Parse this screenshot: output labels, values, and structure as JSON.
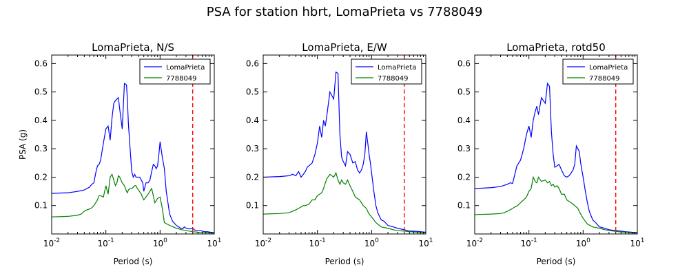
{
  "figure_title": "PSA for station hbrt, LomaPrieta vs 7788049",
  "colors": {
    "series1": "#0000ff",
    "series2": "#008000",
    "vline": "#ff0000"
  },
  "chart_data": [
    {
      "type": "line",
      "title": "LomaPrieta, N/S",
      "xlabel": "Period (s)",
      "ylabel": "PSA (g)",
      "xscale": "log",
      "xlim": [
        0.01,
        10
      ],
      "ylim": [
        0,
        0.63
      ],
      "xticks": [
        0.01,
        0.1,
        1,
        10
      ],
      "xtick_labels": [
        {
          "base": "10",
          "exp": "-2"
        },
        {
          "base": "10",
          "exp": "-1"
        },
        {
          "base": "10",
          "exp": "0"
        },
        {
          "base": "10",
          "exp": "1"
        }
      ],
      "yticks": [
        0.1,
        0.2,
        0.3,
        0.4,
        0.5,
        0.6
      ],
      "ytick_labels": [
        "0.1",
        "0.2",
        "0.3",
        "0.4",
        "0.5",
        "0.6"
      ],
      "legend": {
        "position": "top-right",
        "entries": [
          "LomaPrieta",
          "7788049"
        ]
      },
      "vline": {
        "x": 4.0,
        "style": "dashed"
      },
      "series": [
        {
          "name": "LomaPrieta",
          "color": "#0000ff",
          "x": [
            0.01,
            0.02,
            0.03,
            0.04,
            0.05,
            0.055,
            0.06,
            0.065,
            0.07,
            0.075,
            0.08,
            0.09,
            0.1,
            0.11,
            0.12,
            0.13,
            0.14,
            0.15,
            0.17,
            0.18,
            0.2,
            0.22,
            0.24,
            0.25,
            0.26,
            0.28,
            0.3,
            0.32,
            0.34,
            0.36,
            0.38,
            0.4,
            0.42,
            0.45,
            0.48,
            0.5,
            0.55,
            0.6,
            0.65,
            0.7,
            0.75,
            0.8,
            0.85,
            0.9,
            0.95,
            1.0,
            1.1,
            1.2,
            1.3,
            1.5,
            1.7,
            2.0,
            2.2,
            2.4,
            2.6,
            2.8,
            3.0,
            3.3,
            3.6,
            4.0,
            4.5,
            5.0,
            5.5,
            6.0,
            6.5,
            7.5,
            8.5,
            10.0
          ],
          "y": [
            0.143,
            0.145,
            0.15,
            0.155,
            0.165,
            0.175,
            0.18,
            0.215,
            0.24,
            0.245,
            0.26,
            0.32,
            0.37,
            0.38,
            0.33,
            0.41,
            0.46,
            0.47,
            0.48,
            0.44,
            0.37,
            0.53,
            0.525,
            0.47,
            0.39,
            0.3,
            0.22,
            0.2,
            0.21,
            0.2,
            0.2,
            0.2,
            0.2,
            0.19,
            0.18,
            0.15,
            0.18,
            0.18,
            0.19,
            0.22,
            0.245,
            0.24,
            0.23,
            0.24,
            0.28,
            0.325,
            0.27,
            0.23,
            0.15,
            0.07,
            0.045,
            0.03,
            0.025,
            0.02,
            0.018,
            0.025,
            0.02,
            0.018,
            0.018,
            0.02,
            0.012,
            0.012,
            0.012,
            0.01,
            0.008,
            0.008,
            0.006,
            0.005
          ]
        },
        {
          "name": "7788049",
          "color": "#008000",
          "x": [
            0.01,
            0.02,
            0.025,
            0.03,
            0.035,
            0.04,
            0.045,
            0.05,
            0.055,
            0.06,
            0.065,
            0.07,
            0.075,
            0.08,
            0.09,
            0.1,
            0.11,
            0.12,
            0.13,
            0.14,
            0.15,
            0.16,
            0.17,
            0.18,
            0.2,
            0.22,
            0.24,
            0.25,
            0.26,
            0.28,
            0.3,
            0.32,
            0.34,
            0.36,
            0.38,
            0.4,
            0.45,
            0.5,
            0.55,
            0.6,
            0.7,
            0.8,
            0.9,
            1.0,
            1.1,
            1.2,
            1.5,
            2.0,
            2.5,
            3.0,
            4.0,
            5.0,
            6.0,
            7.0,
            8.0,
            10.0
          ],
          "y": [
            0.06,
            0.062,
            0.064,
            0.066,
            0.07,
            0.08,
            0.085,
            0.088,
            0.092,
            0.1,
            0.11,
            0.12,
            0.135,
            0.135,
            0.13,
            0.17,
            0.14,
            0.2,
            0.21,
            0.19,
            0.17,
            0.18,
            0.205,
            0.2,
            0.18,
            0.17,
            0.15,
            0.145,
            0.155,
            0.16,
            0.16,
            0.165,
            0.17,
            0.17,
            0.16,
            0.155,
            0.14,
            0.12,
            0.13,
            0.14,
            0.16,
            0.11,
            0.125,
            0.13,
            0.09,
            0.04,
            0.03,
            0.02,
            0.015,
            0.012,
            0.008,
            0.006,
            0.005,
            0.005,
            0.004,
            0.003
          ]
        }
      ]
    },
    {
      "type": "line",
      "title": "LomaPrieta, E/W",
      "xlabel": "Period (s)",
      "ylabel": "",
      "xscale": "log",
      "xlim": [
        0.01,
        10
      ],
      "ylim": [
        0,
        0.63
      ],
      "xticks": [
        0.01,
        0.1,
        1,
        10
      ],
      "xtick_labels": [
        {
          "base": "10",
          "exp": "-2"
        },
        {
          "base": "10",
          "exp": "-1"
        },
        {
          "base": "10",
          "exp": "0"
        },
        {
          "base": "10",
          "exp": "1"
        }
      ],
      "yticks": [
        0.1,
        0.2,
        0.3,
        0.4,
        0.5,
        0.6
      ],
      "ytick_labels": [
        "0.1",
        "0.2",
        "0.3",
        "0.4",
        "0.5",
        "0.6"
      ],
      "legend": {
        "position": "top-right",
        "entries": [
          "LomaPrieta",
          "7788049"
        ]
      },
      "vline": {
        "x": 4.0,
        "style": "dashed"
      },
      "series": [
        {
          "name": "LomaPrieta",
          "color": "#0000ff",
          "x": [
            0.01,
            0.02,
            0.03,
            0.035,
            0.04,
            0.045,
            0.05,
            0.055,
            0.06,
            0.065,
            0.07,
            0.08,
            0.09,
            0.1,
            0.11,
            0.12,
            0.13,
            0.14,
            0.15,
            0.17,
            0.2,
            0.22,
            0.24,
            0.26,
            0.28,
            0.3,
            0.33,
            0.36,
            0.4,
            0.45,
            0.5,
            0.55,
            0.6,
            0.65,
            0.7,
            0.75,
            0.8,
            0.85,
            0.9,
            0.95,
            1.0,
            1.1,
            1.2,
            1.3,
            1.5,
            1.7,
            2.0,
            2.5,
            3.0,
            4.0,
            5.0,
            6.0,
            8.0,
            10.0
          ],
          "y": [
            0.2,
            0.202,
            0.205,
            0.21,
            0.205,
            0.22,
            0.2,
            0.21,
            0.22,
            0.235,
            0.24,
            0.25,
            0.28,
            0.32,
            0.38,
            0.34,
            0.4,
            0.38,
            0.42,
            0.5,
            0.475,
            0.57,
            0.565,
            0.35,
            0.27,
            0.255,
            0.24,
            0.29,
            0.28,
            0.25,
            0.255,
            0.225,
            0.215,
            0.225,
            0.245,
            0.28,
            0.36,
            0.32,
            0.28,
            0.25,
            0.215,
            0.15,
            0.1,
            0.075,
            0.05,
            0.045,
            0.03,
            0.025,
            0.02,
            0.015,
            0.01,
            0.01,
            0.008,
            0.006
          ]
        },
        {
          "name": "7788049",
          "color": "#008000",
          "x": [
            0.01,
            0.02,
            0.03,
            0.035,
            0.04,
            0.045,
            0.05,
            0.055,
            0.06,
            0.07,
            0.08,
            0.09,
            0.1,
            0.11,
            0.12,
            0.13,
            0.14,
            0.15,
            0.17,
            0.2,
            0.22,
            0.24,
            0.26,
            0.28,
            0.3,
            0.33,
            0.36,
            0.4,
            0.45,
            0.5,
            0.6,
            0.7,
            0.8,
            0.9,
            1.0,
            1.2,
            1.5,
            2.0,
            2.5,
            3.0,
            4.0,
            5.0,
            6.0,
            7.0,
            8.0,
            10.0
          ],
          "y": [
            0.07,
            0.072,
            0.075,
            0.08,
            0.085,
            0.09,
            0.095,
            0.1,
            0.1,
            0.105,
            0.12,
            0.12,
            0.135,
            0.14,
            0.145,
            0.16,
            0.18,
            0.195,
            0.21,
            0.2,
            0.215,
            0.19,
            0.175,
            0.19,
            0.18,
            0.175,
            0.19,
            0.17,
            0.15,
            0.13,
            0.12,
            0.1,
            0.09,
            0.07,
            0.06,
            0.04,
            0.025,
            0.02,
            0.015,
            0.012,
            0.01,
            0.008,
            0.007,
            0.006,
            0.005,
            0.004
          ]
        }
      ]
    },
    {
      "type": "line",
      "title": "LomaPrieta, rotd50",
      "xlabel": "Period (s)",
      "ylabel": "",
      "xscale": "log",
      "xlim": [
        0.01,
        10
      ],
      "ylim": [
        0,
        0.63
      ],
      "xticks": [
        0.01,
        0.1,
        1,
        10
      ],
      "xtick_labels": [
        {
          "base": "10",
          "exp": "-2"
        },
        {
          "base": "10",
          "exp": "-1"
        },
        {
          "base": "10",
          "exp": "0"
        },
        {
          "base": "10",
          "exp": "1"
        }
      ],
      "yticks": [
        0.1,
        0.2,
        0.3,
        0.4,
        0.5,
        0.6
      ],
      "ytick_labels": [
        "0.1",
        "0.2",
        "0.3",
        "0.4",
        "0.5",
        "0.6"
      ],
      "legend": {
        "position": "top-right",
        "entries": [
          "LomaPrieta",
          "7788049"
        ]
      },
      "vline": {
        "x": 4.0,
        "style": "dashed"
      },
      "series": [
        {
          "name": "LomaPrieta",
          "color": "#0000ff",
          "x": [
            0.01,
            0.02,
            0.03,
            0.04,
            0.045,
            0.05,
            0.055,
            0.06,
            0.065,
            0.07,
            0.08,
            0.09,
            0.1,
            0.11,
            0.12,
            0.13,
            0.14,
            0.15,
            0.17,
            0.2,
            0.22,
            0.24,
            0.26,
            0.28,
            0.3,
            0.33,
            0.36,
            0.4,
            0.45,
            0.5,
            0.55,
            0.6,
            0.65,
            0.7,
            0.75,
            0.8,
            0.85,
            0.9,
            1.0,
            1.1,
            1.2,
            1.3,
            1.5,
            1.7,
            2.0,
            2.5,
            3.0,
            4.0,
            5.0,
            6.0,
            8.0,
            10.0
          ],
          "y": [
            0.16,
            0.163,
            0.167,
            0.175,
            0.18,
            0.178,
            0.21,
            0.24,
            0.25,
            0.26,
            0.3,
            0.35,
            0.38,
            0.34,
            0.4,
            0.43,
            0.45,
            0.42,
            0.48,
            0.46,
            0.53,
            0.52,
            0.36,
            0.28,
            0.235,
            0.24,
            0.245,
            0.225,
            0.205,
            0.2,
            0.205,
            0.215,
            0.225,
            0.245,
            0.31,
            0.3,
            0.29,
            0.25,
            0.2,
            0.15,
            0.11,
            0.08,
            0.05,
            0.04,
            0.025,
            0.02,
            0.015,
            0.012,
            0.01,
            0.008,
            0.006,
            0.005
          ]
        },
        {
          "name": "7788049",
          "color": "#008000",
          "x": [
            0.01,
            0.02,
            0.03,
            0.035,
            0.04,
            0.045,
            0.05,
            0.055,
            0.06,
            0.07,
            0.08,
            0.09,
            0.1,
            0.11,
            0.12,
            0.13,
            0.14,
            0.15,
            0.17,
            0.2,
            0.22,
            0.24,
            0.26,
            0.28,
            0.3,
            0.33,
            0.36,
            0.4,
            0.45,
            0.5,
            0.6,
            0.7,
            0.8,
            0.9,
            1.0,
            1.2,
            1.5,
            2.0,
            2.5,
            3.0,
            4.0,
            5.0,
            6.0,
            7.0,
            8.0,
            10.0
          ],
          "y": [
            0.068,
            0.07,
            0.072,
            0.075,
            0.08,
            0.085,
            0.09,
            0.095,
            0.098,
            0.11,
            0.12,
            0.13,
            0.15,
            0.16,
            0.2,
            0.185,
            0.18,
            0.2,
            0.185,
            0.19,
            0.18,
            0.185,
            0.17,
            0.175,
            0.165,
            0.17,
            0.16,
            0.14,
            0.14,
            0.12,
            0.11,
            0.1,
            0.09,
            0.07,
            0.055,
            0.035,
            0.025,
            0.02,
            0.015,
            0.012,
            0.009,
            0.007,
            0.006,
            0.005,
            0.004,
            0.003
          ]
        }
      ]
    }
  ]
}
